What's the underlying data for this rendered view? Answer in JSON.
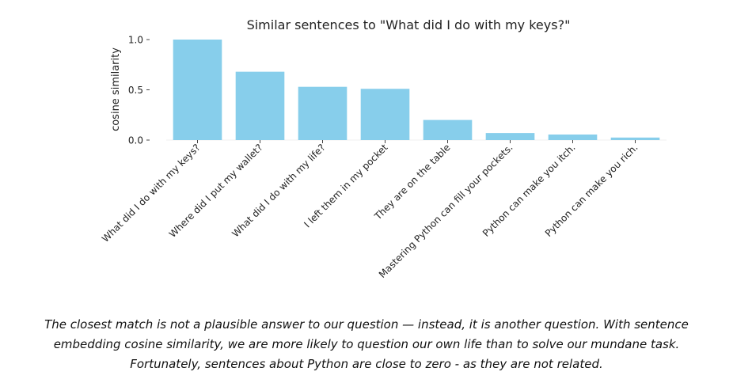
{
  "chart_data": {
    "type": "bar",
    "title": "Similar sentences to \"What did I do with my keys?\"",
    "xlabel": "",
    "ylabel": "cosine similarity",
    "categories": [
      "What did I do with my keys?",
      "Where did I put my wallet?",
      "What did I do with my life?",
      "I left them in my pocket",
      "They are on the table",
      "Mastering Python can fill your pockets.",
      "Python can make you itch.",
      "Python can make you rich."
    ],
    "values": [
      1.0,
      0.68,
      0.53,
      0.51,
      0.2,
      0.07,
      0.055,
      0.025
    ],
    "ylim": [
      0,
      1.0
    ],
    "yticks": [
      0.0,
      0.5,
      1.0
    ],
    "ytick_labels": [
      "0.0",
      "0.5",
      "1.0"
    ],
    "grid": false,
    "legend": "none",
    "bar_color": "#87ceeb"
  },
  "caption": {
    "line1": "The closest match is not a plausible answer to our question — instead, it is another question. With sentence",
    "line2": "embedding cosine similarity, we are more likely to question our own life than to solve our mundane task.",
    "line3": "Fortunately, sentences about Python are close to zero - as they are not related."
  }
}
